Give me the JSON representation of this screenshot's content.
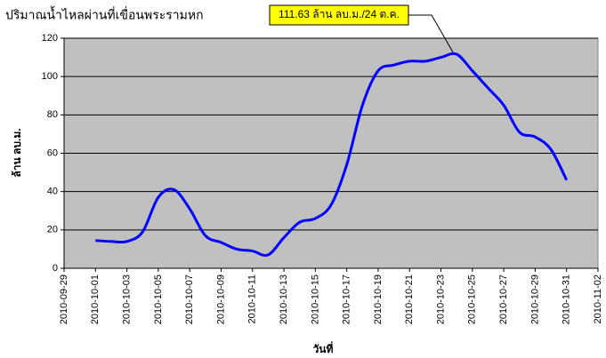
{
  "chart_data": {
    "type": "line",
    "title": "ปริมาณน้ำไหลผ่านที่เขื่อนพระรามหก",
    "x_label": "วันที่",
    "y_label": "ล้าน ลบ.ม.",
    "annotation": "111.63 ล้าน ลบ.ม./24 ต.ค.",
    "annotation_index": 23,
    "x": [
      "2010-10-01",
      "2010-10-02",
      "2010-10-03",
      "2010-10-04",
      "2010-10-05",
      "2010-10-06",
      "2010-10-07",
      "2010-10-08",
      "2010-10-09",
      "2010-10-10",
      "2010-10-11",
      "2010-10-12",
      "2010-10-13",
      "2010-10-14",
      "2010-10-15",
      "2010-10-16",
      "2010-10-17",
      "2010-10-18",
      "2010-10-19",
      "2010-10-20",
      "2010-10-21",
      "2010-10-22",
      "2010-10-23",
      "2010-10-24",
      "2010-10-25",
      "2010-10-26",
      "2010-10-27",
      "2010-10-28",
      "2010-10-29",
      "2010-10-30",
      "2010-10-31"
    ],
    "values": [
      14.5,
      14,
      14,
      19,
      37,
      41,
      31,
      17,
      13.5,
      10,
      9,
      7,
      16,
      24,
      26,
      33,
      54,
      85,
      103,
      106,
      108,
      108,
      110,
      111.63,
      103,
      94,
      85,
      71,
      68.5,
      62,
      46
    ],
    "color": "#0000ff",
    "xlim": [
      "2010-09-29",
      "2010-11-02"
    ],
    "xticks": [
      "2010-09-29",
      "2010-10-01",
      "2010-10-03",
      "2010-10-05",
      "2010-10-07",
      "2010-10-09",
      "2010-10-11",
      "2010-10-13",
      "2010-10-15",
      "2010-10-17",
      "2010-10-19",
      "2010-10-21",
      "2010-10-23",
      "2010-10-25",
      "2010-10-27",
      "2010-10-29",
      "2010-10-31",
      "2010-11-02"
    ],
    "ylim": [
      0,
      120
    ],
    "yticks": [
      0,
      20,
      40,
      60,
      80,
      100,
      120
    ],
    "grid": true,
    "background": "#c0c0c0"
  }
}
